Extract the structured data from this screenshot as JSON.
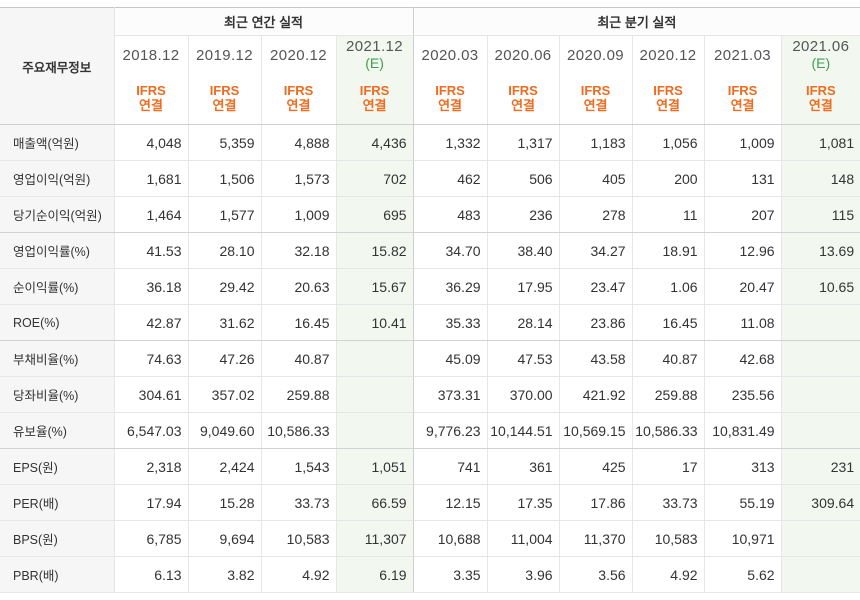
{
  "table": {
    "corner_label": "주요재무정보",
    "groups": [
      {
        "label": "최근 연간 실적",
        "columns": [
          {
            "period": "2018.12",
            "estimate_mark": "",
            "standard": "IFRS",
            "basis": "연결"
          },
          {
            "period": "2019.12",
            "estimate_mark": "",
            "standard": "IFRS",
            "basis": "연결"
          },
          {
            "period": "2020.12",
            "estimate_mark": "",
            "standard": "IFRS",
            "basis": "연결"
          },
          {
            "period": "2021.12",
            "estimate_mark": "(E)",
            "standard": "IFRS",
            "basis": "연결"
          }
        ]
      },
      {
        "label": "최근 분기 실적",
        "columns": [
          {
            "period": "2020.03",
            "estimate_mark": "",
            "standard": "IFRS",
            "basis": "연결"
          },
          {
            "period": "2020.06",
            "estimate_mark": "",
            "standard": "IFRS",
            "basis": "연결"
          },
          {
            "period": "2020.09",
            "estimate_mark": "",
            "standard": "IFRS",
            "basis": "연결"
          },
          {
            "period": "2020.12",
            "estimate_mark": "",
            "standard": "IFRS",
            "basis": "연결"
          },
          {
            "period": "2021.03",
            "estimate_mark": "",
            "standard": "IFRS",
            "basis": "연결"
          },
          {
            "period": "2021.06",
            "estimate_mark": "(E)",
            "standard": "IFRS",
            "basis": "연결"
          }
        ]
      }
    ],
    "rows": [
      {
        "label": "매출액(억원)",
        "values": [
          "4,048",
          "5,359",
          "4,888",
          "4,436",
          "1,332",
          "1,317",
          "1,183",
          "1,056",
          "1,009",
          "1,081"
        ]
      },
      {
        "label": "영업이익(억원)",
        "values": [
          "1,681",
          "1,506",
          "1,573",
          "702",
          "462",
          "506",
          "405",
          "200",
          "131",
          "148"
        ]
      },
      {
        "label": "당기순이익(억원)",
        "values": [
          "1,464",
          "1,577",
          "1,009",
          "695",
          "483",
          "236",
          "278",
          "11",
          "207",
          "115"
        ]
      },
      {
        "label": "영업이익률(%)",
        "values": [
          "41.53",
          "28.10",
          "32.18",
          "15.82",
          "34.70",
          "38.40",
          "34.27",
          "18.91",
          "12.96",
          "13.69"
        ]
      },
      {
        "label": "순이익률(%)",
        "values": [
          "36.18",
          "29.42",
          "20.63",
          "15.67",
          "36.29",
          "17.95",
          "23.47",
          "1.06",
          "20.47",
          "10.65"
        ]
      },
      {
        "label": "ROE(%)",
        "values": [
          "42.87",
          "31.62",
          "16.45",
          "10.41",
          "35.33",
          "28.14",
          "23.86",
          "16.45",
          "11.08",
          ""
        ]
      },
      {
        "label": "부채비율(%)",
        "values": [
          "74.63",
          "47.26",
          "40.87",
          "",
          "45.09",
          "47.53",
          "43.58",
          "40.87",
          "42.68",
          ""
        ]
      },
      {
        "label": "당좌비율(%)",
        "values": [
          "304.61",
          "357.02",
          "259.88",
          "",
          "373.31",
          "370.00",
          "421.92",
          "259.88",
          "235.56",
          ""
        ]
      },
      {
        "label": "유보율(%)",
        "values": [
          "6,547.03",
          "9,049.60",
          "10,586.33",
          "",
          "9,776.23",
          "10,144.51",
          "10,569.15",
          "10,586.33",
          "10,831.49",
          ""
        ]
      },
      {
        "label": "EPS(원)",
        "values": [
          "2,318",
          "2,424",
          "1,543",
          "1,051",
          "741",
          "361",
          "425",
          "17",
          "313",
          "231"
        ]
      },
      {
        "label": "PER(배)",
        "values": [
          "17.94",
          "15.28",
          "33.73",
          "66.59",
          "12.15",
          "17.35",
          "17.86",
          "33.73",
          "55.19",
          "309.64"
        ]
      },
      {
        "label": "BPS(원)",
        "values": [
          "6,785",
          "9,694",
          "10,583",
          "11,307",
          "10,688",
          "11,004",
          "11,370",
          "10,583",
          "10,971",
          ""
        ]
      },
      {
        "label": "PBR(배)",
        "values": [
          "6.13",
          "3.82",
          "4.92",
          "6.19",
          "3.35",
          "3.96",
          "3.56",
          "4.92",
          "5.62",
          ""
        ]
      }
    ]
  },
  "colors": {
    "accounting_standard_text": "#ee6b1f",
    "estimate_mark_text": "#3f9f4f",
    "estimate_column_bg": "#f2f8f0",
    "label_column_bg": "#f6f6f6"
  }
}
